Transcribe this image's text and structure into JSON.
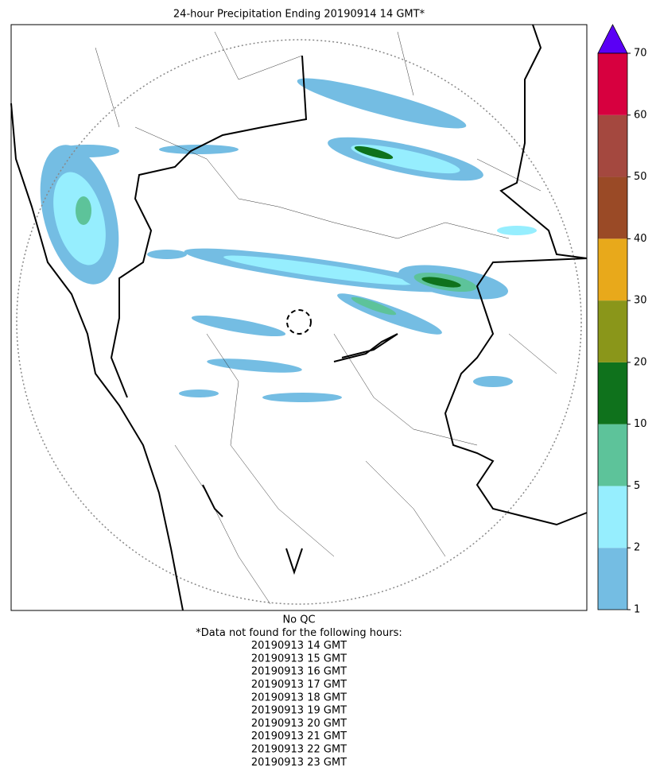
{
  "title": "24-hour Precipitation Ending 20190914 14 GMT*",
  "colorbar": {
    "levels": [
      1,
      2,
      5,
      10,
      20,
      30,
      40,
      50,
      60,
      70
    ],
    "colors": [
      "#74bde3",
      "#96eefe",
      "#5dc39a",
      "#0f721c",
      "#8a961a",
      "#e8a91b",
      "#9a4a26",
      "#a4483f",
      "#d7003f"
    ],
    "extend_color": "#5a00f5"
  },
  "footer": [
    "No QC",
    "*Data not found for the following hours:",
    "20190913 14 GMT",
    "20190913 15 GMT",
    "20190913 16 GMT",
    "20190913 17 GMT",
    "20190913 18 GMT",
    "20190913 19 GMT",
    "20190913 20 GMT",
    "20190913 21 GMT",
    "20190913 22 GMT",
    "20190913 23 GMT"
  ]
}
